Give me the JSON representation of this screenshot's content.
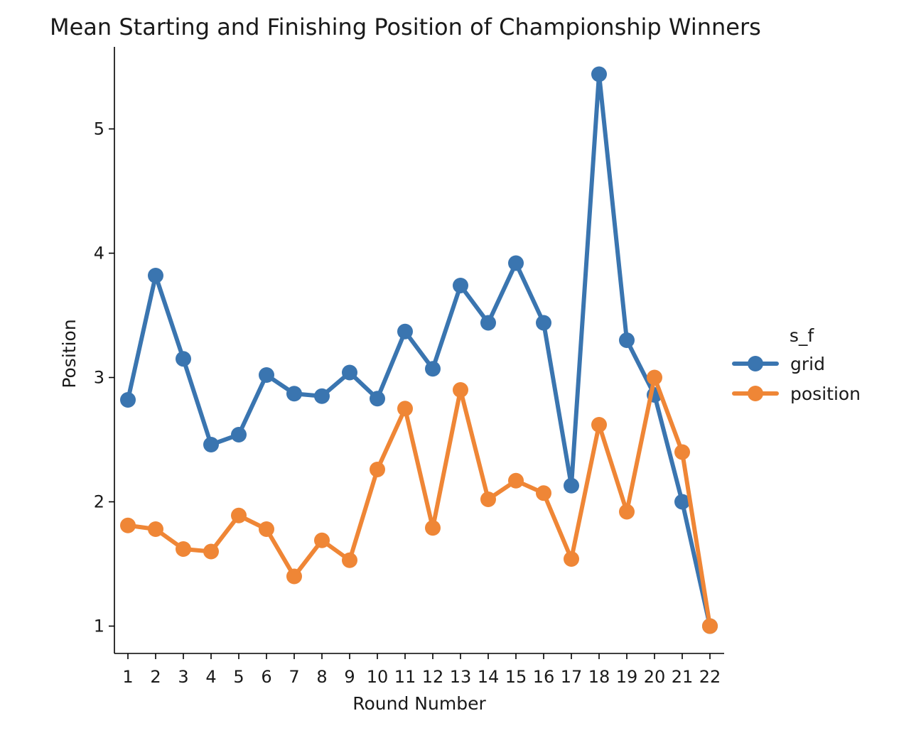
{
  "chart_data": {
    "type": "line",
    "title": "Mean Starting and Finishing Position of Championship Winners",
    "xlabel": "Round Number",
    "ylabel": "Position",
    "categories": [
      "1",
      "2",
      "3",
      "4",
      "5",
      "6",
      "7",
      "8",
      "9",
      "10",
      "11",
      "12",
      "13",
      "14",
      "15",
      "16",
      "17",
      "18",
      "19",
      "20",
      "21",
      "22"
    ],
    "yticks": [
      "1",
      "2",
      "3",
      "4",
      "5"
    ],
    "ylim": [
      0.78,
      5.66
    ],
    "grid": false,
    "legend": {
      "title": "s_f",
      "placement": "right"
    },
    "series": [
      {
        "name": "grid",
        "color": "#3a75b0",
        "values": [
          2.82,
          3.82,
          3.15,
          2.46,
          2.54,
          3.02,
          2.87,
          2.85,
          3.04,
          2.83,
          3.37,
          3.07,
          3.74,
          3.44,
          3.92,
          3.44,
          2.13,
          5.44,
          3.3,
          2.86,
          2.0,
          1.0
        ]
      },
      {
        "name": "position",
        "color": "#ef8636",
        "values": [
          1.81,
          1.78,
          1.62,
          1.6,
          1.89,
          1.78,
          1.4,
          1.69,
          1.53,
          2.26,
          2.75,
          1.79,
          2.9,
          2.02,
          2.17,
          2.07,
          1.54,
          2.62,
          1.92,
          3.0,
          2.4,
          1.0
        ]
      }
    ]
  }
}
